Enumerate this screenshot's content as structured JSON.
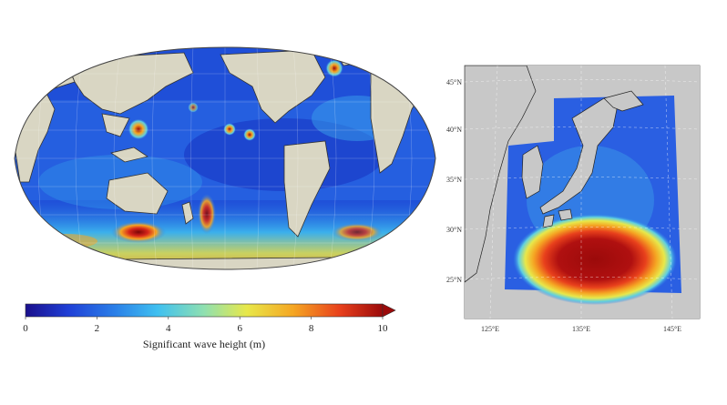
{
  "colorbar": {
    "title": "Significant wave height (m)",
    "ticks": [
      "0",
      "2",
      "4",
      "6",
      "8",
      "10"
    ],
    "tick_values": [
      0,
      2,
      4,
      6,
      8,
      10
    ],
    "range": [
      0,
      10
    ],
    "extend": "max",
    "colors": [
      "#1a0f8c",
      "#1f3fd6",
      "#2a7fe8",
      "#3fc0f0",
      "#8fe0b0",
      "#e8e84a",
      "#f5a623",
      "#e8401c",
      "#9b0a0a"
    ]
  },
  "global_map": {
    "projection": "Robinson",
    "land_color": "#d9d6c3",
    "grid": true
  },
  "regional_map": {
    "lat_labels": [
      "45°N",
      "40°N",
      "35°N",
      "30°N",
      "25°N"
    ],
    "lon_labels": [
      "125°E",
      "135°E",
      "145°E"
    ],
    "land_color": "#c8c8c8",
    "grid": true
  }
}
